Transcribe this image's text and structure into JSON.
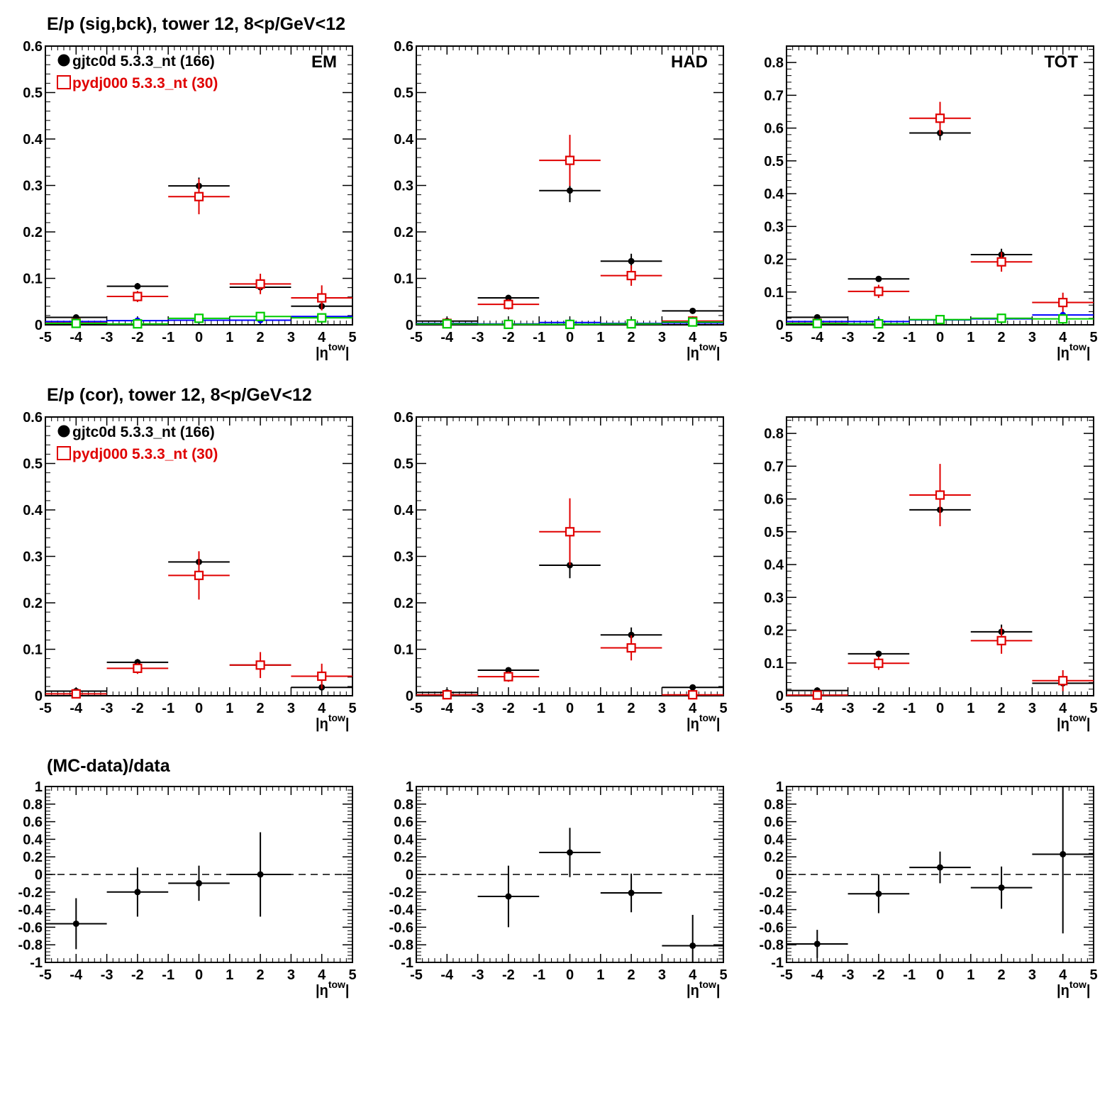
{
  "sections": [
    {
      "title": "E/p (sig,bck), tower 12,  8<p/GeV<12"
    },
    {
      "title": "E/p (cor), tower 12,  8<p/GeV<12"
    },
    {
      "title": "(MC-data)/data"
    }
  ],
  "legend": [
    {
      "label": "gjtc0d 5.3.3_nt (166)",
      "color": "#000000",
      "marker": "filled-circle"
    },
    {
      "label": "pydj000 5.3.3_nt (30)",
      "color": "#e00000",
      "marker": "open-square"
    }
  ],
  "colors": {
    "data": "#000000",
    "mc": "#e00000",
    "bck_data": "#0000ff",
    "bck_mc": "#00cc00"
  },
  "chart_data": [
    {
      "id": "sigbck-em",
      "type": "scatter",
      "panel_label": "EM",
      "xlabel": "|η^tow|",
      "xlim": [
        -5,
        5
      ],
      "ylim": [
        0,
        0.6
      ],
      "yticks": [
        0,
        0.1,
        0.2,
        0.3,
        0.4,
        0.5,
        0.6
      ],
      "x_bin_edges": [
        -5,
        -3,
        -1,
        1,
        3,
        5
      ],
      "legend_shown": true,
      "series": [
        {
          "name": "gjtc0d 5.3.3_nt (166)",
          "color": "#000000",
          "marker": "dot",
          "x": [
            -4,
            -2,
            0,
            2,
            4
          ],
          "y": [
            0.016,
            0.083,
            0.299,
            0.081,
            0.04
          ],
          "yerr": [
            0.003,
            0.007,
            0.018,
            0.008,
            0.006
          ]
        },
        {
          "name": "pydj000 5.3.3_nt (30)",
          "color": "#e00000",
          "marker": "square",
          "x": [
            -4,
            -2,
            0,
            2,
            4
          ],
          "y": [
            0.004,
            0.061,
            0.276,
            0.088,
            0.058
          ],
          "yerr": [
            0.004,
            0.012,
            0.038,
            0.022,
            0.027
          ]
        },
        {
          "color": "#0000ff",
          "marker": "dot",
          "x": [
            -4,
            -2,
            0,
            2,
            4
          ],
          "y": [
            0.007,
            0.009,
            0.01,
            0.01,
            0.018
          ],
          "yerr": [
            0.002,
            0.002,
            0.002,
            0.002,
            0.003
          ]
        },
        {
          "color": "#00cc00",
          "marker": "square",
          "x": [
            -4,
            -2,
            0,
            2,
            4
          ],
          "y": [
            0.003,
            0.002,
            0.014,
            0.018,
            0.015
          ],
          "yerr": [
            0.002,
            0.002,
            0.005,
            0.006,
            0.006
          ]
        }
      ]
    },
    {
      "id": "sigbck-had",
      "type": "scatter",
      "panel_label": "HAD",
      "xlabel": "|η^tow|",
      "xlim": [
        -5,
        5
      ],
      "ylim": [
        0,
        0.6
      ],
      "yticks": [
        0,
        0.1,
        0.2,
        0.3,
        0.4,
        0.5,
        0.6
      ],
      "x_bin_edges": [
        -5,
        -3,
        -1,
        1,
        3,
        5
      ],
      "series": [
        {
          "name": "gjtc0d 5.3.3_nt (166)",
          "color": "#000000",
          "marker": "dot",
          "x": [
            -4,
            -2,
            0,
            2,
            4
          ],
          "y": [
            0.008,
            0.058,
            0.289,
            0.137,
            0.03
          ],
          "yerr": [
            0.002,
            0.006,
            0.025,
            0.016,
            0.005
          ]
        },
        {
          "name": "pydj000 5.3.3_nt (30)",
          "color": "#e00000",
          "marker": "square",
          "x": [
            -4,
            -2,
            0,
            2,
            4
          ],
          "y": [
            0.003,
            0.044,
            0.354,
            0.106,
            0.008
          ],
          "yerr": [
            0.003,
            0.011,
            0.055,
            0.022,
            0.005
          ]
        },
        {
          "color": "#0000ff",
          "marker": "dot",
          "x": [
            -4,
            -2,
            0,
            2,
            4
          ],
          "y": [
            0.003,
            0.002,
            0.005,
            0.003,
            0.004
          ],
          "yerr": [
            0.001,
            0.001,
            0.001,
            0.001,
            0.001
          ]
        },
        {
          "color": "#00cc00",
          "marker": "square",
          "x": [
            -4,
            -2,
            0,
            2,
            4
          ],
          "y": [
            0.002,
            0.001,
            0.001,
            0.002,
            0.006
          ],
          "yerr": [
            0.001,
            0.001,
            0.001,
            0.001,
            0.002
          ]
        }
      ]
    },
    {
      "id": "sigbck-tot",
      "type": "scatter",
      "panel_label": "TOT",
      "xlabel": "|η^tow|",
      "xlim": [
        -5,
        5
      ],
      "ylim": [
        0,
        0.85
      ],
      "yticks": [
        0,
        0.1,
        0.2,
        0.3,
        0.4,
        0.5,
        0.6,
        0.7,
        0.8
      ],
      "x_bin_edges": [
        -5,
        -3,
        -1,
        1,
        3,
        5
      ],
      "series": [
        {
          "name": "gjtc0d 5.3.3_nt (166)",
          "color": "#000000",
          "marker": "dot",
          "x": [
            -4,
            -2,
            0,
            2,
            4
          ],
          "y": [
            0.023,
            0.14,
            0.585,
            0.214,
            0.068
          ],
          "yerr": [
            0.004,
            0.008,
            0.022,
            0.018,
            0.008
          ]
        },
        {
          "name": "pydj000 5.3.3_nt (30)",
          "color": "#e00000",
          "marker": "square",
          "x": [
            -4,
            -2,
            0,
            2,
            4
          ],
          "y": [
            0.005,
            0.102,
            0.63,
            0.192,
            0.068
          ],
          "yerr": [
            0.005,
            0.02,
            0.05,
            0.03,
            0.03
          ]
        },
        {
          "color": "#0000ff",
          "marker": "dot",
          "x": [
            -4,
            -2,
            0,
            2,
            4
          ],
          "y": [
            0.01,
            0.01,
            0.015,
            0.018,
            0.03
          ],
          "yerr": [
            0.002,
            0.002,
            0.002,
            0.003,
            0.004
          ]
        },
        {
          "color": "#00cc00",
          "marker": "square",
          "x": [
            -4,
            -2,
            0,
            2,
            4
          ],
          "y": [
            0.004,
            0.003,
            0.016,
            0.02,
            0.018
          ],
          "yerr": [
            0.002,
            0.002,
            0.005,
            0.006,
            0.006
          ]
        }
      ]
    },
    {
      "id": "cor-em",
      "type": "scatter",
      "xlabel": "|η^tow|",
      "xlim": [
        -5,
        5
      ],
      "ylim": [
        0,
        0.6
      ],
      "yticks": [
        0,
        0.1,
        0.2,
        0.3,
        0.4,
        0.5,
        0.6
      ],
      "x_bin_edges": [
        -5,
        -3,
        -1,
        1,
        3,
        5
      ],
      "legend_shown": true,
      "series": [
        {
          "name": "gjtc0d 5.3.3_nt (166)",
          "color": "#000000",
          "marker": "dot",
          "x": [
            -4,
            -2,
            0,
            2,
            4
          ],
          "y": [
            0.01,
            0.072,
            0.288,
            0.066,
            0.018
          ],
          "yerr": [
            0.003,
            0.007,
            0.018,
            0.008,
            0.006
          ]
        },
        {
          "name": "pydj000 5.3.3_nt (30)",
          "color": "#e00000",
          "marker": "square",
          "x": [
            -4,
            -2,
            0,
            2,
            4
          ],
          "y": [
            0.004,
            0.059,
            0.259,
            0.066,
            0.042
          ],
          "yerr": [
            0.004,
            0.012,
            0.052,
            0.028,
            0.027
          ]
        }
      ]
    },
    {
      "id": "cor-had",
      "type": "scatter",
      "xlabel": "|η^tow|",
      "xlim": [
        -5,
        5
      ],
      "ylim": [
        0,
        0.6
      ],
      "yticks": [
        0,
        0.1,
        0.2,
        0.3,
        0.4,
        0.5,
        0.6
      ],
      "x_bin_edges": [
        -5,
        -3,
        -1,
        1,
        3,
        5
      ],
      "series": [
        {
          "name": "gjtc0d 5.3.3_nt (166)",
          "color": "#000000",
          "marker": "dot",
          "x": [
            -4,
            -2,
            0,
            2,
            4
          ],
          "y": [
            0.007,
            0.055,
            0.281,
            0.131,
            0.018
          ],
          "yerr": [
            0.002,
            0.006,
            0.028,
            0.016,
            0.004
          ]
        },
        {
          "name": "pydj000 5.3.3_nt (30)",
          "color": "#e00000",
          "marker": "square",
          "x": [
            -4,
            -2,
            0,
            2,
            4
          ],
          "y": [
            0.002,
            0.041,
            0.353,
            0.103,
            0.002
          ],
          "yerr": [
            0.002,
            0.011,
            0.072,
            0.027,
            0.003
          ]
        }
      ]
    },
    {
      "id": "cor-tot",
      "type": "scatter",
      "xlabel": "|η^tow|",
      "xlim": [
        -5,
        5
      ],
      "ylim": [
        0,
        0.85
      ],
      "yticks": [
        0,
        0.1,
        0.2,
        0.3,
        0.4,
        0.5,
        0.6,
        0.7,
        0.8
      ],
      "x_bin_edges": [
        -5,
        -3,
        -1,
        1,
        3,
        5
      ],
      "series": [
        {
          "name": "gjtc0d 5.3.3_nt (166)",
          "color": "#000000",
          "marker": "dot",
          "x": [
            -4,
            -2,
            0,
            2,
            4
          ],
          "y": [
            0.016,
            0.128,
            0.567,
            0.195,
            0.038
          ],
          "yerr": [
            0.004,
            0.009,
            0.05,
            0.022,
            0.008
          ]
        },
        {
          "name": "pydj000 5.3.3_nt (30)",
          "color": "#e00000",
          "marker": "square",
          "x": [
            -4,
            -2,
            0,
            2,
            4
          ],
          "y": [
            0.002,
            0.099,
            0.612,
            0.168,
            0.046
          ],
          "yerr": [
            0.003,
            0.02,
            0.095,
            0.04,
            0.032
          ]
        }
      ]
    },
    {
      "id": "ratio-em",
      "type": "scatter",
      "xlabel": "|η^tow|",
      "xlim": [
        -5,
        5
      ],
      "ylim": [
        -1,
        1
      ],
      "yticks": [
        -1,
        -0.8,
        -0.6,
        -0.4,
        -0.2,
        0,
        0.2,
        0.4,
        0.6,
        0.8,
        1
      ],
      "zero_line": "dashed",
      "series": [
        {
          "color": "#000000",
          "marker": "dot",
          "x": [
            -4,
            -2,
            0,
            2
          ],
          "xerr": [
            1,
            1,
            1,
            1
          ],
          "y": [
            -0.56,
            -0.2,
            -0.1,
            0.0
          ],
          "yerr": [
            0.29,
            0.28,
            0.2,
            0.48
          ]
        }
      ]
    },
    {
      "id": "ratio-had",
      "type": "scatter",
      "xlabel": "|η^tow|",
      "xlim": [
        -5,
        5
      ],
      "ylim": [
        -1,
        1
      ],
      "yticks": [
        -1,
        -0.8,
        -0.6,
        -0.4,
        -0.2,
        0,
        0.2,
        0.4,
        0.6,
        0.8,
        1
      ],
      "zero_line": "dashed",
      "series": [
        {
          "color": "#000000",
          "marker": "dot",
          "x": [
            -2,
            0,
            2,
            4
          ],
          "xerr": [
            1,
            1,
            1,
            1
          ],
          "y": [
            -0.25,
            0.25,
            -0.21,
            -0.81
          ],
          "yerr": [
            0.35,
            0.28,
            0.22,
            0.35
          ]
        }
      ]
    },
    {
      "id": "ratio-tot",
      "type": "scatter",
      "xlabel": "|η^tow|",
      "xlim": [
        -5,
        5
      ],
      "ylim": [
        -1,
        1
      ],
      "yticks": [
        -1,
        -0.8,
        -0.6,
        -0.4,
        -0.2,
        0,
        0.2,
        0.4,
        0.6,
        0.8,
        1
      ],
      "zero_line": "dashed",
      "series": [
        {
          "color": "#000000",
          "marker": "dot",
          "x": [
            -4,
            -2,
            0,
            2,
            4
          ],
          "xerr": [
            1,
            1,
            1,
            1,
            1
          ],
          "y": [
            -0.79,
            -0.22,
            0.08,
            -0.15,
            0.23
          ],
          "yerr": [
            0.16,
            0.22,
            0.18,
            0.24,
            0.9
          ]
        }
      ]
    }
  ]
}
